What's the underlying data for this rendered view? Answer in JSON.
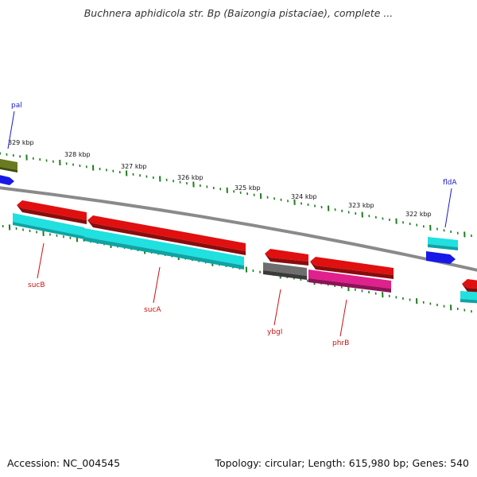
{
  "title": "Buchnera aphidicola str. Bp (Baizongia pistaciae), complete ...",
  "footer": {
    "accession": "Accession: NC_004545",
    "summary": "Topology: circular; Length: 615,980 bp; Genes: 540"
  },
  "colors": {
    "backbone": "#8a8a8a",
    "tick": "#1e7d1e",
    "forward_gene_label": "#1a1acc",
    "reverse_gene_label": "#cc1111",
    "red": "#e01010",
    "cyan": "#20e0e0",
    "gray": "#6e6e6e",
    "magenta": "#e0208c",
    "blue": "#1818e8",
    "olive": "#6b7a1e"
  },
  "scale_labels": [
    "329 kbp",
    "328 kbp",
    "327 kbp",
    "326 kbp",
    "325 kbp",
    "324 kbp",
    "323 kbp",
    "322 kbp"
  ],
  "gene_labels": [
    {
      "name": "pal",
      "strand": "forward"
    },
    {
      "name": "fldA",
      "strand": "forward"
    },
    {
      "name": "sucB",
      "strand": "reverse"
    },
    {
      "name": "sucA",
      "strand": "reverse"
    },
    {
      "name": "ybgI",
      "strand": "reverse"
    },
    {
      "name": "phrB",
      "strand": "reverse"
    }
  ],
  "features": [
    {
      "color": "olive",
      "strand": "forward"
    },
    {
      "color": "blue",
      "strand": "forward"
    },
    {
      "color": "cyan",
      "strand": "forward"
    },
    {
      "color": "blue",
      "strand": "forward"
    },
    {
      "color": "red",
      "strand": "reverse"
    },
    {
      "color": "red",
      "strand": "reverse"
    },
    {
      "color": "red",
      "strand": "reverse"
    },
    {
      "color": "red",
      "strand": "reverse"
    },
    {
      "color": "red",
      "strand": "reverse"
    },
    {
      "color": "cyan",
      "strand": "reverse"
    },
    {
      "color": "cyan",
      "strand": "reverse"
    },
    {
      "color": "gray",
      "strand": "reverse"
    },
    {
      "color": "magenta",
      "strand": "reverse"
    },
    {
      "color": "cyan",
      "strand": "reverse"
    }
  ]
}
